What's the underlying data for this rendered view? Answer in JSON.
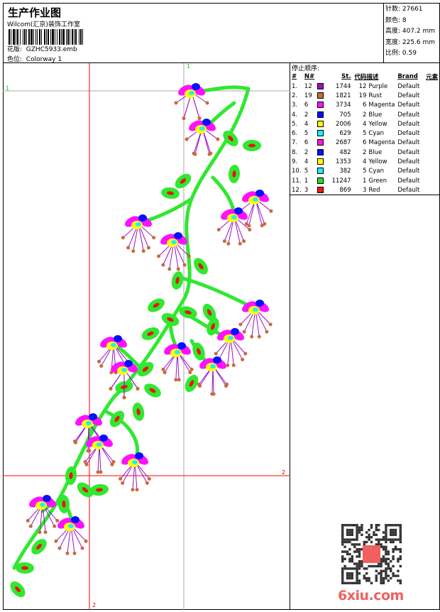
{
  "header": {
    "title": "生产作业图",
    "company": "Wilcom(汇京)装饰工作室",
    "design_label": "花版:",
    "design_value": "GZHC5933.emb",
    "colorway_label": "色位:",
    "colorway_value": "Colorway 1"
  },
  "stats": {
    "stitches": "针数: 27661",
    "colors": "颜色: 8",
    "height": "高度: 407.2 mm",
    "width": "宽度: 225.6 mm",
    "scale": "比例: 0.59"
  },
  "guides": {
    "label1a": "1",
    "label1b": "1",
    "label2a": "2",
    "label2b": "2"
  },
  "stop_sequence": {
    "title": "停止顺序:",
    "columns": [
      "#",
      "N#",
      "St.",
      "代码",
      "描述",
      "Brand",
      "元素"
    ],
    "rows": [
      {
        "idx": "1.",
        "n": "12",
        "color": "#9b10c8",
        "st": "1744",
        "code": "12",
        "desc": "Purple",
        "brand": "Default"
      },
      {
        "idx": "2.",
        "n": "19",
        "color": "#c86a3c",
        "st": "1821",
        "code": "19",
        "desc": "Rust",
        "brand": "Default"
      },
      {
        "idx": "3.",
        "n": "6",
        "color": "#ff10ff",
        "st": "3734",
        "code": "6",
        "desc": "Magenta",
        "brand": "Default"
      },
      {
        "idx": "4.",
        "n": "2",
        "color": "#0010ff",
        "st": "705",
        "code": "2",
        "desc": "Blue",
        "brand": "Default"
      },
      {
        "idx": "5.",
        "n": "4",
        "color": "#ffff00",
        "st": "2006",
        "code": "4",
        "desc": "Yellow",
        "brand": "Default"
      },
      {
        "idx": "6.",
        "n": "5",
        "color": "#20f0f0",
        "st": "629",
        "code": "5",
        "desc": "Cyan",
        "brand": "Default"
      },
      {
        "idx": "7.",
        "n": "6",
        "color": "#ff10ff",
        "st": "2687",
        "code": "6",
        "desc": "Magenta",
        "brand": "Default"
      },
      {
        "idx": "8.",
        "n": "2",
        "color": "#0010ff",
        "st": "482",
        "code": "2",
        "desc": "Blue",
        "brand": "Default"
      },
      {
        "idx": "9.",
        "n": "4",
        "color": "#ffff00",
        "st": "1353",
        "code": "4",
        "desc": "Yellow",
        "brand": "Default"
      },
      {
        "idx": "10.",
        "n": "5",
        "color": "#20f0f0",
        "st": "382",
        "code": "5",
        "desc": "Cyan",
        "brand": "Default"
      },
      {
        "idx": "11.",
        "n": "1",
        "color": "#20e020",
        "st": "11247",
        "code": "1",
        "desc": "Green",
        "brand": "Default"
      },
      {
        "idx": "12.",
        "n": "3",
        "color": "#ff1010",
        "st": "869",
        "code": "3",
        "desc": "Red",
        "brand": "Default"
      }
    ]
  },
  "watermark": {
    "qr_seal": "以图版",
    "site": "6xiu.com"
  }
}
